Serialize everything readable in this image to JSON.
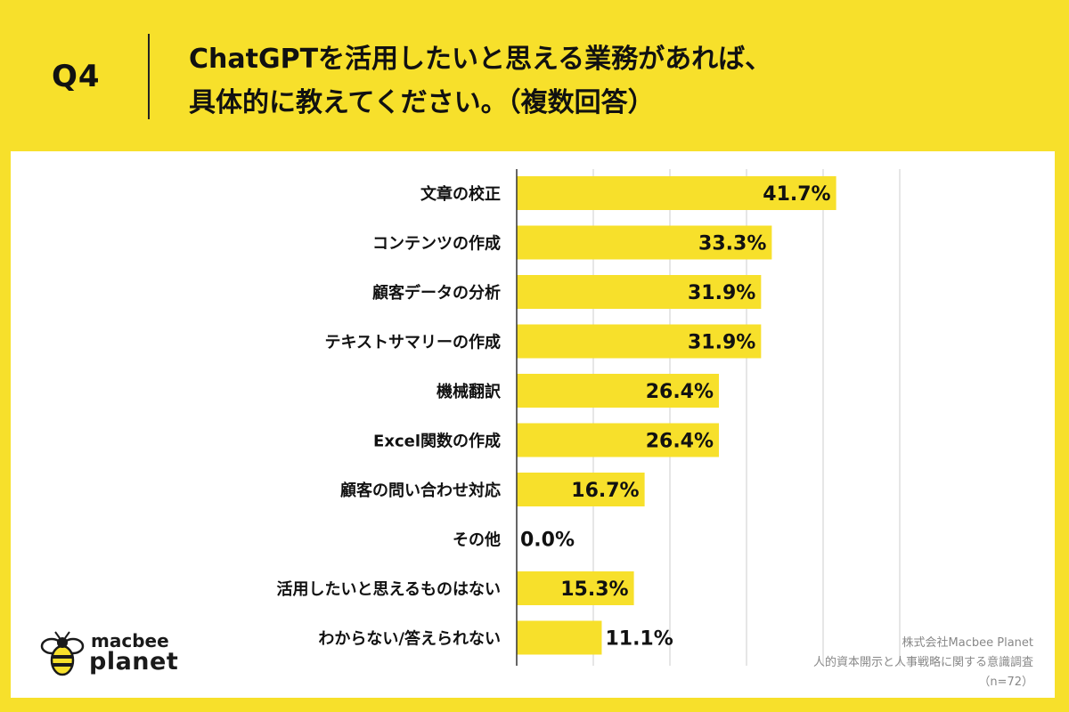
{
  "header": {
    "q_label": "Q4",
    "question_line1": "ChatGPTを活用したいと思える業務があれば、",
    "question_line2": "具体的に教えてください。（複数回答）"
  },
  "colors": {
    "background": "#f7e02b",
    "bar": "#f7e02b",
    "panel": "#ffffff",
    "gridline": "#cccccc"
  },
  "chart_data": {
    "type": "bar",
    "orientation": "horizontal",
    "categories": [
      "文章の校正",
      "コンテンツの作成",
      "顧客データの分析",
      "テキストサマリーの作成",
      "機械翻訳",
      "Excel関数の作成",
      "顧客の問い合わせ対応",
      "その他",
      "活用したいと思えるものはない",
      "わからない/答えられない"
    ],
    "values": [
      41.7,
      33.3,
      31.9,
      31.9,
      26.4,
      26.4,
      16.7,
      0.0,
      15.3,
      11.1
    ],
    "value_labels": [
      "41.7%",
      "33.3%",
      "31.9%",
      "31.9%",
      "26.4%",
      "26.4%",
      "16.7%",
      "0.0%",
      "15.3%",
      "11.1%"
    ],
    "xlim": [
      0,
      50
    ],
    "grid": true
  },
  "logo": {
    "line1": "macbee",
    "line2": "planet",
    "icon": "bee-icon"
  },
  "credits": {
    "company": "株式会社Macbee Planet",
    "survey": "人的資本開示と人事戦略に関する意識調査",
    "sample": "（n=72）"
  }
}
